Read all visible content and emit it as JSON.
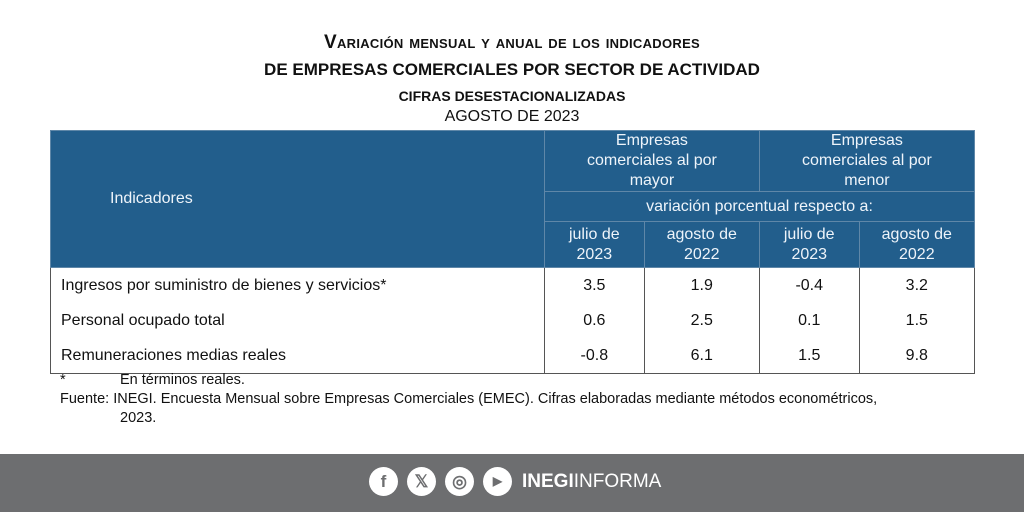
{
  "title": {
    "line1": "Variación mensual y anual de los indicadores",
    "line2": "DE EMPRESAS COMERCIALES POR SECTOR DE ACTIVIDAD",
    "line3": "CIFRAS DESESTACIONALIZADAS",
    "line4": "AGOSTO DE 2023"
  },
  "header": {
    "indicadores": "Indicadores",
    "group1": "Empresas comerciales al por mayor",
    "group2": "Empresas comerciales al por menor",
    "subhead": "variación porcentual respecto a:",
    "cols": [
      "julio de 2023",
      "agosto de 2022",
      "julio de 2023",
      "agosto de 2022"
    ]
  },
  "rows": [
    {
      "label": "Ingresos por suministro de bienes y servicios*",
      "values": [
        "3.5",
        "1.9",
        "-0.4",
        "3.2"
      ]
    },
    {
      "label": "Personal ocupado total",
      "values": [
        "0.6",
        "2.5",
        "0.1",
        "1.5"
      ]
    },
    {
      "label": "Remuneraciones medias reales",
      "values": [
        "-0.8",
        "6.1",
        "1.5",
        "9.8"
      ]
    }
  ],
  "notes": {
    "asterisk": "*",
    "asterisk_text": "En términos reales.",
    "source_label": "Fuente:",
    "source_text": "INEGI. Encuesta Mensual sobre Empresas Comerciales (EMEC). Cifras elaboradas mediante métodos econométricos,",
    "source_text2": "2023."
  },
  "footer": {
    "icons": [
      "facebook-icon",
      "x-icon",
      "instagram-icon",
      "youtube-icon"
    ],
    "brand_bold": "INEGI",
    "brand_light": "INFORMA"
  },
  "colors": {
    "header": "#225e8c",
    "band": "#6d6e70"
  }
}
